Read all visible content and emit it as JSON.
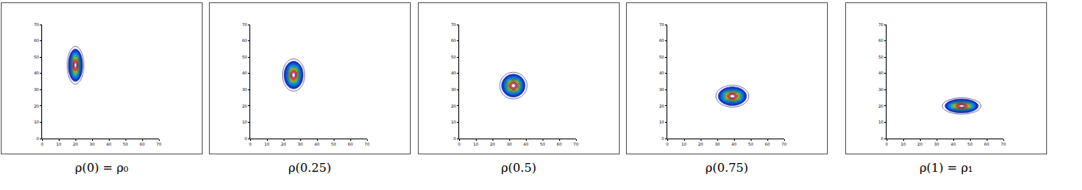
{
  "chart_data": [
    {
      "type": "contour",
      "title": "ρ(0) = ρ₀",
      "center": [
        20,
        45
      ],
      "sigma": [
        2.3,
        5.4
      ],
      "xlim": [
        0,
        70
      ],
      "ylim": [
        0,
        70
      ],
      "xticks": [
        0,
        10,
        20,
        30,
        40,
        50,
        60,
        70
      ],
      "yticks": [
        0,
        10,
        20,
        30,
        40,
        50,
        60,
        70
      ]
    },
    {
      "type": "contour",
      "title": "ρ(0.25)",
      "center": [
        26,
        39
      ],
      "sigma": [
        3.1,
        4.6
      ],
      "xlim": [
        0,
        70
      ],
      "ylim": [
        0,
        70
      ],
      "xticks": [
        0,
        10,
        20,
        30,
        40,
        50,
        60,
        70
      ],
      "yticks": [
        0,
        10,
        20,
        30,
        40,
        50,
        60,
        70
      ]
    },
    {
      "type": "contour",
      "title": "ρ(0.5)",
      "center": [
        32.5,
        32.5
      ],
      "sigma": [
        3.8,
        3.8
      ],
      "xlim": [
        0,
        70
      ],
      "ylim": [
        0,
        70
      ],
      "xticks": [
        0,
        10,
        20,
        30,
        40,
        50,
        60,
        70
      ],
      "yticks": [
        0,
        10,
        20,
        30,
        40,
        50,
        60,
        70
      ]
    },
    {
      "type": "contour",
      "title": "ρ(0.75)",
      "center": [
        39,
        26
      ],
      "sigma": [
        4.6,
        3.1
      ],
      "xlim": [
        0,
        70
      ],
      "ylim": [
        0,
        70
      ],
      "xticks": [
        0,
        10,
        20,
        30,
        40,
        50,
        60,
        70
      ],
      "yticks": [
        0,
        10,
        20,
        30,
        40,
        50,
        60,
        70
      ]
    },
    {
      "type": "contour",
      "title": "ρ(1) = ρ₁",
      "center": [
        45,
        20
      ],
      "sigma": [
        5.4,
        2.3
      ],
      "xlim": [
        0,
        70
      ],
      "ylim": [
        0,
        70
      ],
      "xticks": [
        0,
        10,
        20,
        30,
        40,
        50,
        60,
        70
      ],
      "yticks": [
        0,
        10,
        20,
        30,
        40,
        50,
        60,
        70
      ]
    }
  ]
}
